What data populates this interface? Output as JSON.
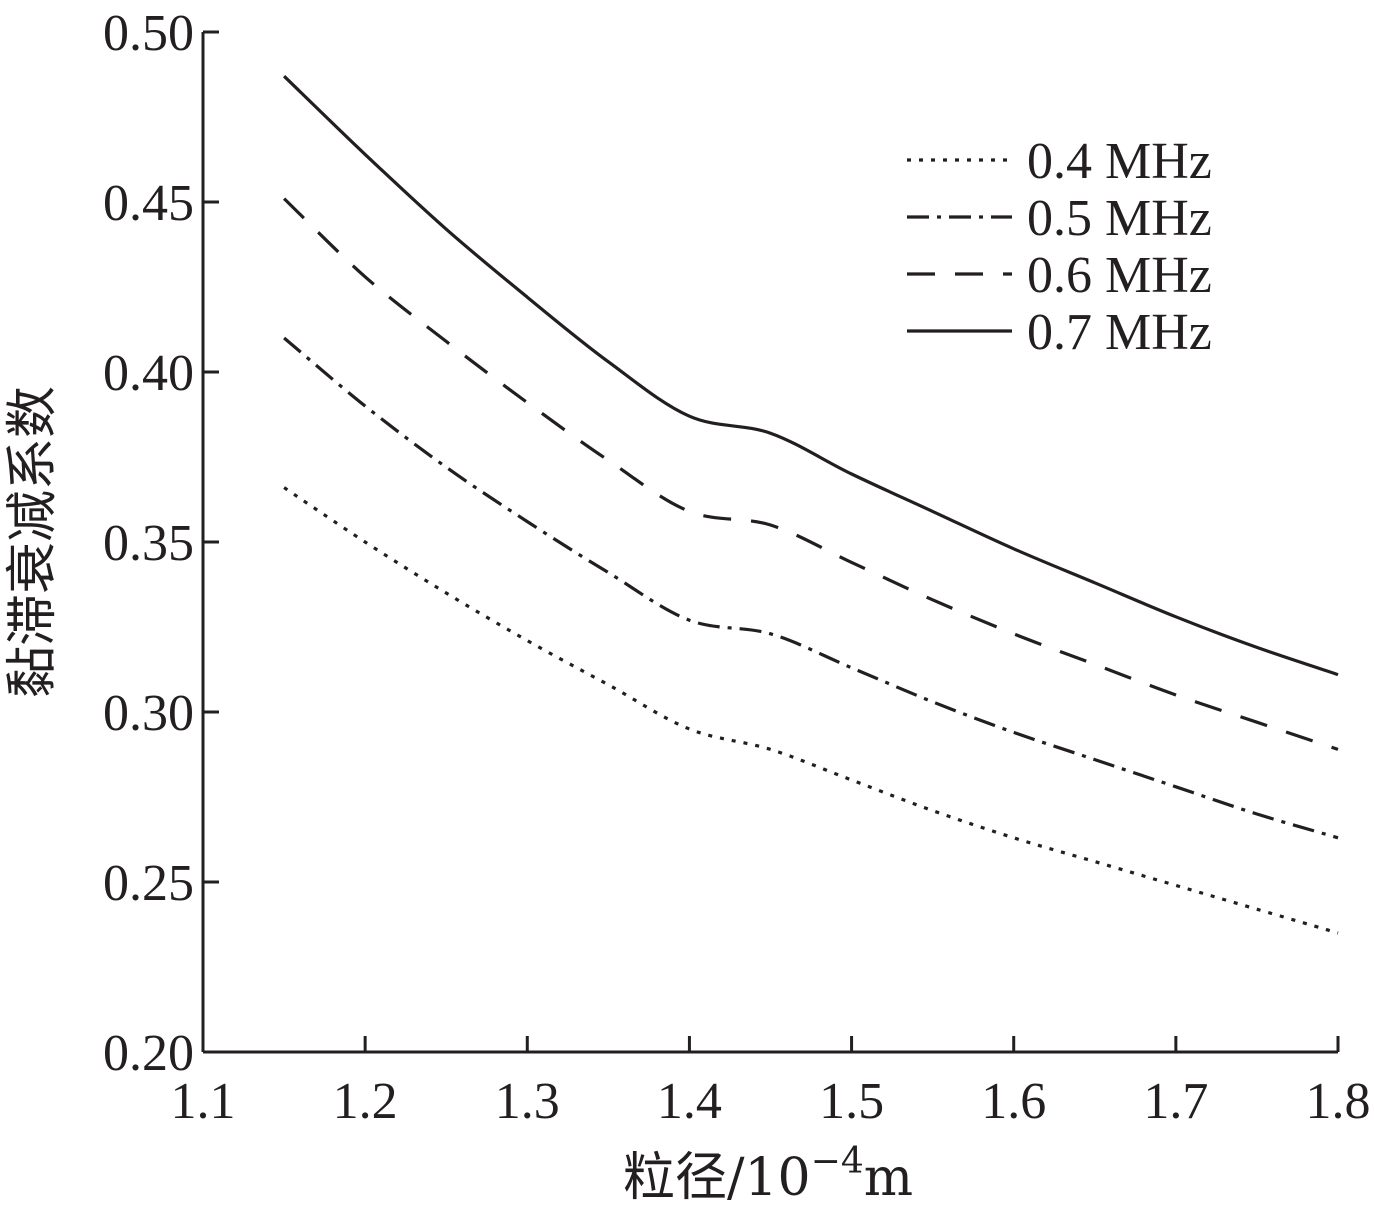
{
  "chart_data": {
    "type": "line",
    "title": "",
    "xlabel": "粒径/10",
    "xlabel_exponent": "−4",
    "xlabel_unit": "m",
    "ylabel": "黏滞衰减系数",
    "xlim": [
      1.1,
      1.8
    ],
    "ylim": [
      0.2,
      0.5
    ],
    "xticks": [
      1.1,
      1.2,
      1.3,
      1.4,
      1.5,
      1.6,
      1.7,
      1.8
    ],
    "xtick_labels": [
      "1.1",
      "1.2",
      "1.3",
      "1.4",
      "1.5",
      "1.6",
      "1.7",
      "1.8"
    ],
    "yticks": [
      0.2,
      0.25,
      0.3,
      0.35,
      0.4,
      0.45,
      0.5
    ],
    "ytick_labels": [
      "0.20",
      "0.25",
      "0.30",
      "0.35",
      "0.40",
      "0.45",
      "0.50"
    ],
    "grid": false,
    "legend_position": "top-right",
    "x": [
      1.15,
      1.2,
      1.25,
      1.3,
      1.35,
      1.4,
      1.45,
      1.5,
      1.55,
      1.6,
      1.65,
      1.7,
      1.75,
      1.8
    ],
    "series": [
      {
        "name": "0.4 MHz",
        "style": "dotted",
        "values": [
          0.366,
          0.35,
          0.335,
          0.321,
          0.308,
          0.295,
          0.289,
          0.28,
          0.271,
          0.263,
          0.256,
          0.249,
          0.242,
          0.235
        ]
      },
      {
        "name": "0.5 MHz",
        "style": "dash-dot",
        "values": [
          0.41,
          0.39,
          0.372,
          0.356,
          0.341,
          0.327,
          0.323,
          0.313,
          0.303,
          0.294,
          0.286,
          0.278,
          0.27,
          0.263
        ]
      },
      {
        "name": "0.6 MHz",
        "style": "dashed",
        "values": [
          0.451,
          0.428,
          0.409,
          0.391,
          0.374,
          0.359,
          0.355,
          0.344,
          0.333,
          0.323,
          0.314,
          0.305,
          0.297,
          0.289
        ]
      },
      {
        "name": "0.7 MHz",
        "style": "solid",
        "values": [
          0.487,
          0.464,
          0.442,
          0.422,
          0.403,
          0.387,
          0.382,
          0.37,
          0.359,
          0.348,
          0.338,
          0.328,
          0.319,
          0.311
        ]
      }
    ]
  }
}
